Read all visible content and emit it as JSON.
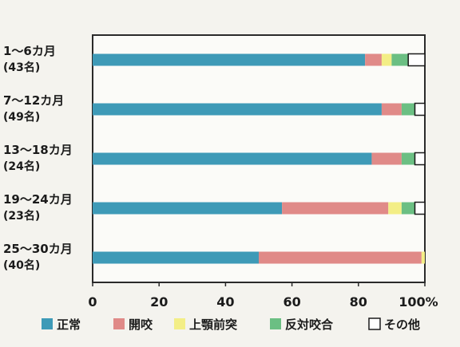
{
  "chart_data": {
    "type": "bar",
    "orientation": "horizontal",
    "stacked": true,
    "categories": [
      {
        "label": "1～6カ月",
        "sub": "(43名)"
      },
      {
        "label": "7～12カ月",
        "sub": "(49名)"
      },
      {
        "label": "13～18カ月",
        "sub": "(24名)"
      },
      {
        "label": "19～24カ月",
        "sub": "(23名)"
      },
      {
        "label": "25～30カ月",
        "sub": "(40名)"
      }
    ],
    "series": [
      {
        "name": "正常",
        "color": "#3e9ab7",
        "values": [
          82,
          87,
          84,
          57,
          50
        ]
      },
      {
        "name": "開咬",
        "color": "#e08a88",
        "values": [
          5,
          6,
          9,
          32,
          49
        ]
      },
      {
        "name": "上顎前突",
        "color": "#f3ee86",
        "values": [
          3,
          0,
          0,
          4,
          1
        ]
      },
      {
        "name": "反対咬合",
        "color": "#6bbf83",
        "values": [
          5,
          4,
          4,
          4,
          0
        ]
      },
      {
        "name": "その他",
        "color": "#ffffff",
        "values": [
          5,
          3,
          3,
          3,
          0
        ]
      }
    ],
    "xlim": [
      0,
      100
    ],
    "xticks": [
      "0",
      "20",
      "40",
      "60",
      "80",
      "100%"
    ],
    "grid": false,
    "legend": "bottom"
  }
}
